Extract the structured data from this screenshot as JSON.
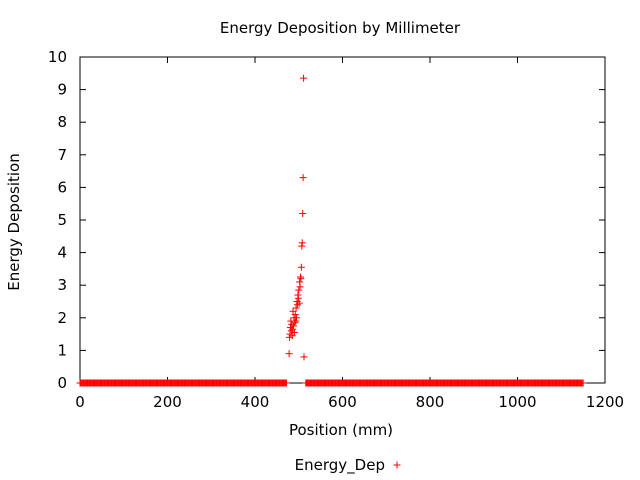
{
  "chart_data": {
    "type": "scatter",
    "title": "Energy Deposition by Millimeter",
    "xlabel": "Position (mm)",
    "ylabel": "Energy Deposition",
    "xlim": [
      0,
      1200
    ],
    "ylim": [
      0,
      10
    ],
    "xticks": [
      "0",
      "200",
      "400",
      "600",
      "800",
      "1000",
      "1200"
    ],
    "yticks": [
      "0",
      "1",
      "2",
      "3",
      "4",
      "5",
      "6",
      "7",
      "8",
      "9",
      "10"
    ],
    "grid": false,
    "legend_position": "bottom-center",
    "series": [
      {
        "name": "Energy_Dep",
        "color": "#ff0000",
        "marker": "plus",
        "baseline_ranges": [
          [
            0,
            473,
            0
          ],
          [
            516,
            1150,
            0
          ]
        ],
        "points": [
          [
            478,
            0.9
          ],
          [
            479,
            1.4
          ],
          [
            480,
            1.5
          ],
          [
            481,
            1.7
          ],
          [
            482,
            1.9
          ],
          [
            483,
            1.6
          ],
          [
            484,
            1.8
          ],
          [
            485,
            1.45
          ],
          [
            486,
            1.65
          ],
          [
            487,
            2.2
          ],
          [
            488,
            1.75
          ],
          [
            489,
            2.0
          ],
          [
            490,
            1.55
          ],
          [
            491,
            1.85
          ],
          [
            492,
            2.1
          ],
          [
            493,
            1.9
          ],
          [
            494,
            2.3
          ],
          [
            495,
            2.0
          ],
          [
            496,
            2.5
          ],
          [
            497,
            2.4
          ],
          [
            498,
            2.7
          ],
          [
            499,
            2.6
          ],
          [
            500,
            2.85
          ],
          [
            501,
            2.45
          ],
          [
            502,
            3.1
          ],
          [
            503,
            2.95
          ],
          [
            504,
            3.25
          ],
          [
            505,
            3.2
          ],
          [
            506,
            3.55
          ],
          [
            507,
            4.2
          ],
          [
            508,
            4.3
          ],
          [
            509,
            5.2
          ],
          [
            510,
            6.3
          ],
          [
            511,
            9.35
          ],
          [
            512,
            0.8
          ]
        ]
      }
    ]
  }
}
